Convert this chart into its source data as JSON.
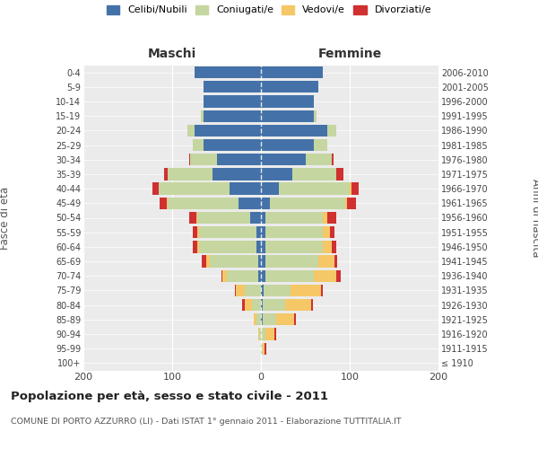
{
  "age_groups": [
    "100+",
    "95-99",
    "90-94",
    "85-89",
    "80-84",
    "75-79",
    "70-74",
    "65-69",
    "60-64",
    "55-59",
    "50-54",
    "45-49",
    "40-44",
    "35-39",
    "30-34",
    "25-29",
    "20-24",
    "15-19",
    "10-14",
    "5-9",
    "0-4"
  ],
  "birth_years": [
    "≤ 1910",
    "1911-1915",
    "1916-1920",
    "1921-1925",
    "1926-1930",
    "1931-1935",
    "1936-1940",
    "1941-1945",
    "1946-1950",
    "1951-1955",
    "1956-1960",
    "1961-1965",
    "1966-1970",
    "1971-1975",
    "1976-1980",
    "1981-1985",
    "1986-1990",
    "1991-1995",
    "1996-2000",
    "2001-2005",
    "2006-2010"
  ],
  "males": {
    "celibi": [
      0,
      0,
      0,
      0,
      0,
      0,
      3,
      3,
      5,
      5,
      12,
      25,
      35,
      55,
      50,
      65,
      75,
      65,
      65,
      65,
      75
    ],
    "coniugati": [
      0,
      0,
      2,
      5,
      10,
      18,
      35,
      55,
      65,
      65,
      60,
      80,
      80,
      50,
      30,
      12,
      8,
      3,
      0,
      0,
      0
    ],
    "vedovi": [
      0,
      0,
      1,
      3,
      8,
      10,
      5,
      4,
      2,
      2,
      1,
      1,
      0,
      0,
      0,
      0,
      0,
      0,
      0,
      0,
      0
    ],
    "divorziati": [
      0,
      0,
      0,
      0,
      3,
      1,
      1,
      5,
      5,
      5,
      8,
      8,
      7,
      4,
      1,
      0,
      0,
      0,
      0,
      0,
      0
    ]
  },
  "females": {
    "nubili": [
      0,
      0,
      0,
      2,
      2,
      3,
      5,
      5,
      5,
      5,
      5,
      10,
      20,
      35,
      50,
      60,
      75,
      60,
      60,
      65,
      70
    ],
    "coniugate": [
      0,
      2,
      5,
      15,
      25,
      30,
      55,
      60,
      65,
      65,
      65,
      85,
      80,
      50,
      30,
      15,
      10,
      3,
      0,
      0,
      0
    ],
    "vedove": [
      0,
      2,
      10,
      20,
      30,
      35,
      25,
      18,
      10,
      8,
      5,
      2,
      2,
      0,
      0,
      0,
      0,
      0,
      0,
      0,
      0
    ],
    "divorziate": [
      0,
      2,
      2,
      2,
      2,
      2,
      5,
      3,
      5,
      5,
      10,
      10,
      8,
      8,
      2,
      0,
      0,
      0,
      0,
      0,
      0
    ]
  },
  "colors": {
    "celibi": "#4472a8",
    "coniugati": "#c5d6a0",
    "vedovi": "#f5c766",
    "divorziati": "#d03030"
  },
  "title": "Popolazione per età, sesso e stato civile - 2011",
  "subtitle": "COMUNE DI PORTO AZZURRO (LI) - Dati ISTAT 1° gennaio 2011 - Elaborazione TUTTITALIA.IT",
  "xlabel_left": "Maschi",
  "xlabel_right": "Femmine",
  "ylabel_left": "Fasce di età",
  "ylabel_right": "Anni di nascita",
  "xlim": 200,
  "bg_color": "#ffffff",
  "plot_bg_color": "#ebebeb"
}
